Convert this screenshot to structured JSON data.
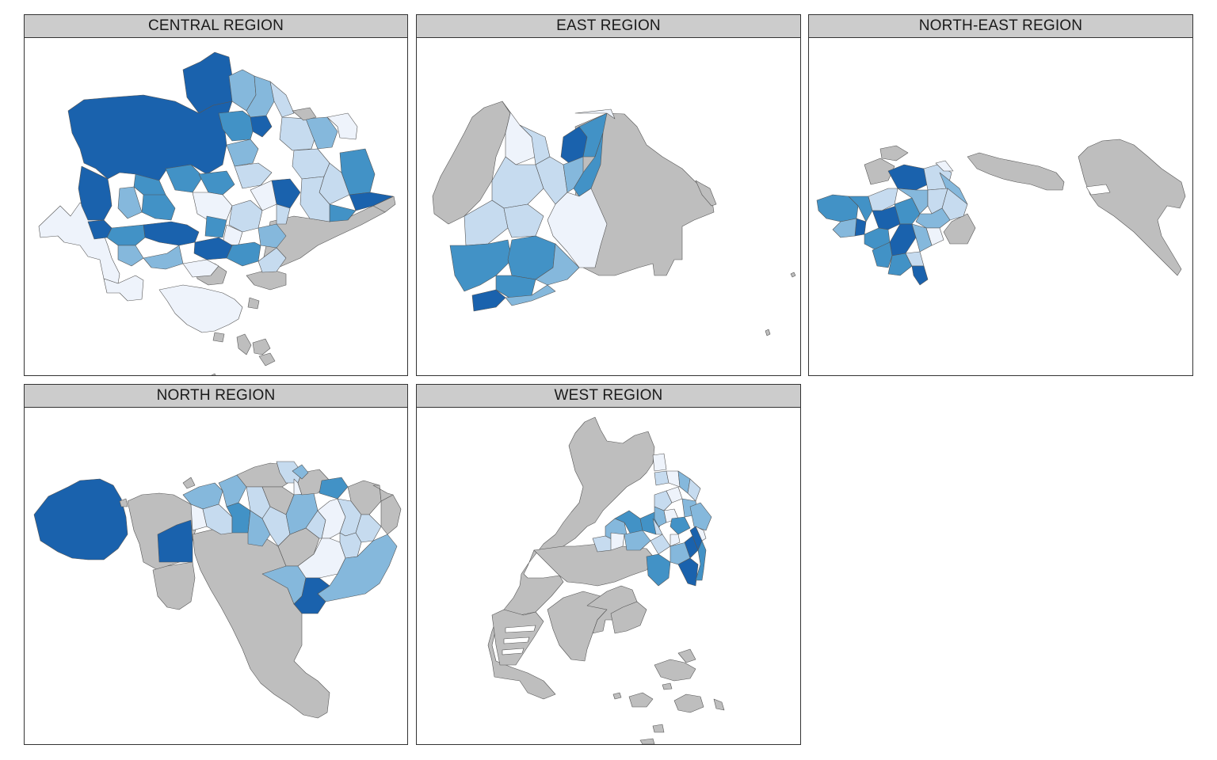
{
  "panels": [
    {
      "id": "central",
      "title": "CENTRAL REGION"
    },
    {
      "id": "east",
      "title": "EAST REGION"
    },
    {
      "id": "north_east",
      "title": "NORTH-EAST REGION"
    },
    {
      "id": "north",
      "title": "NORTH REGION"
    },
    {
      "id": "west",
      "title": "WEST REGION"
    }
  ],
  "colors": {
    "no_data": "#bebebe",
    "class_1": "#eef3fb",
    "class_2": "#c6dbef",
    "class_3": "#85b8dc",
    "class_4": "#4292c6",
    "class_5": "#1a62ad",
    "border": "#555555",
    "strip": "#cccccc"
  }
}
